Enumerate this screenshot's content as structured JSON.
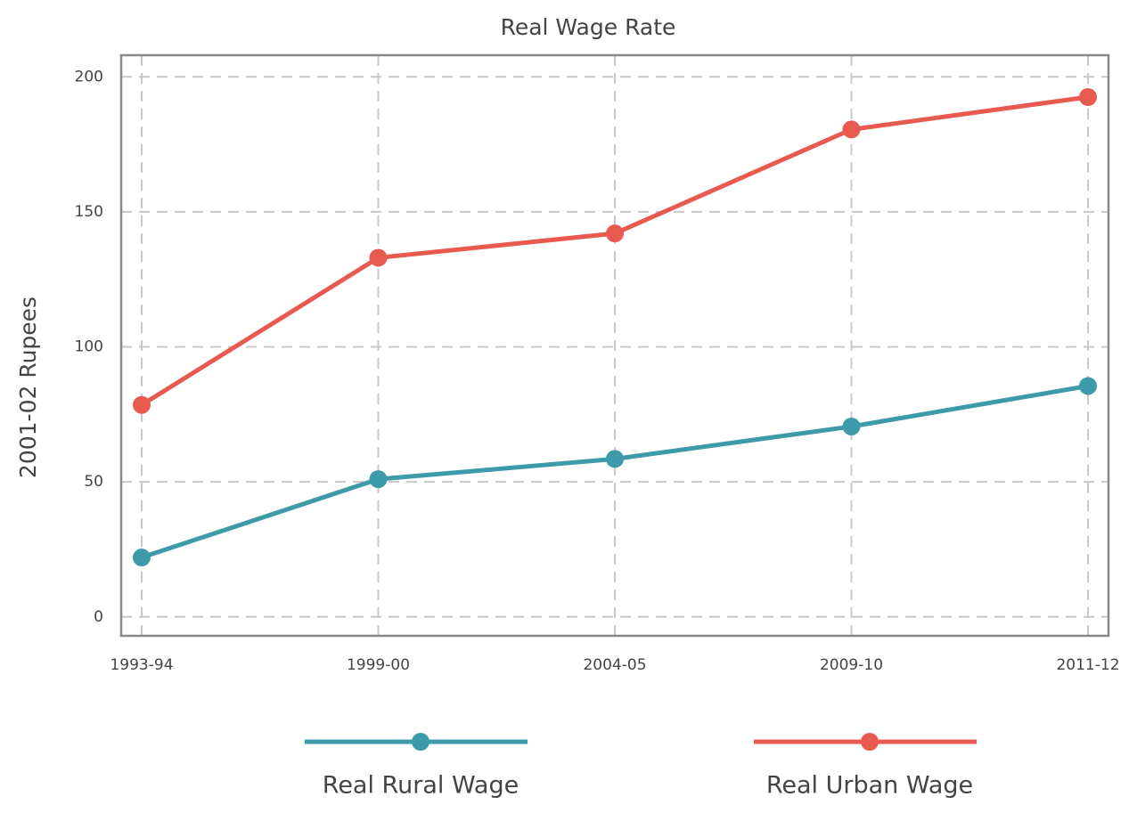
{
  "chart_data": {
    "type": "line",
    "title": "Real Wage Rate",
    "y_label": "2001-02  Rupees",
    "categories": [
      "1993-94",
      "1999-00",
      "2004-05",
      "2009-10",
      "2011-12"
    ],
    "series": [
      {
        "name": "Real Rural Wage",
        "color": "#3d9aa8",
        "values": [
          22,
          51,
          58.5,
          70.5,
          85.5
        ]
      },
      {
        "name": "Real Urban Wage",
        "color": "#e85a50",
        "values": [
          78.5,
          133,
          142,
          180.5,
          192.5
        ]
      }
    ],
    "ylim": [
      -7,
      208
    ],
    "yticks": [
      0,
      50,
      100,
      150,
      200
    ],
    "grid": true,
    "legend": "bottom"
  }
}
